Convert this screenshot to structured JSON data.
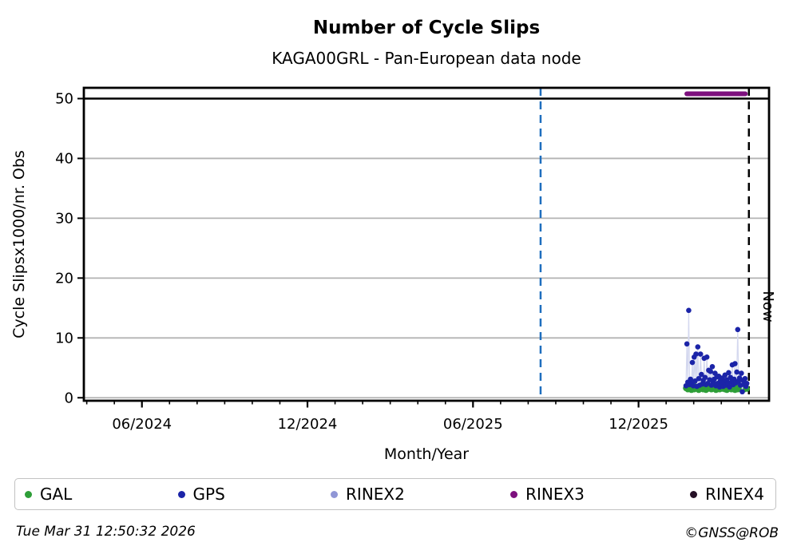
{
  "header": {
    "title": "Number of Cycle Slips",
    "subtitle": "KAGA00GRL - Pan-European data node"
  },
  "footer": {
    "timestamp": "Tue Mar 31 12:50:32 2026",
    "credit": "©GNSS@ROB"
  },
  "legend": {
    "entries": [
      {
        "label": "GAL",
        "color": "#2e9e38"
      },
      {
        "label": "GPS",
        "color": "#1b24a8"
      },
      {
        "label": "RINEX2",
        "color": "#9096d6"
      },
      {
        "label": "RINEX3",
        "color": "#7d107e"
      },
      {
        "label": "RINEX4",
        "color": "#251026"
      }
    ]
  },
  "chart_data": {
    "type": "scatter",
    "title": "Number of Cycle Slips",
    "subtitle": "KAGA00GRL - Pan-European data node",
    "xlabel": "Month/Year",
    "ylabel": "Cycle Slipsx1000/nr. Obs",
    "x_axis": {
      "unit": "months_since_2024-04",
      "range": [
        -0.105,
        24.73
      ],
      "minor_tick_step_months": 1,
      "major_ticks": [
        {
          "m": 2,
          "label": "06/2024"
        },
        {
          "m": 8,
          "label": "12/2024"
        },
        {
          "m": 14,
          "label": "06/2025"
        },
        {
          "m": 20,
          "label": "12/2025"
        }
      ]
    },
    "y_axis": {
      "range": [
        -0.5,
        51.8
      ],
      "ticks": [
        0,
        10,
        20,
        30,
        40,
        50
      ],
      "cap_line_value": 50,
      "cap_line_color": "#000000",
      "grid_color": "#b3b3b3",
      "grid_on": true
    },
    "marker_lines": [
      {
        "name": "event-line",
        "m": 16.45,
        "color": "#1e6ebe",
        "style": "dashed",
        "label": ""
      },
      {
        "name": "now-line",
        "m": 24.0,
        "color": "#000000",
        "style": "dashed",
        "label": "Now"
      }
    ],
    "legend_position": "bottom",
    "series": [
      {
        "name": "GAL",
        "color": "#2e9e38",
        "marker_radius": 3.8,
        "start_m": 21.72,
        "step_m": 0.0329,
        "values": [
          1.6,
          1.8,
          1.4,
          1.9,
          1.5,
          1.7,
          1.3,
          1.8,
          1.6,
          1.4,
          1.9,
          1.7,
          1.5,
          1.8,
          1.3,
          1.6,
          1.9,
          1.5,
          1.7,
          1.4,
          1.8,
          1.6,
          1.3,
          1.7,
          1.9,
          1.5,
          1.6,
          1.8,
          1.4,
          1.7,
          1.5,
          1.9,
          1.6,
          1.3,
          1.8,
          1.5,
          1.7,
          1.4,
          1.6,
          1.9,
          1.5,
          1.7,
          1.8,
          1.4,
          1.6,
          1.3,
          1.7,
          1.5,
          1.9,
          1.6,
          1.4,
          1.8,
          1.7,
          1.5,
          1.3,
          1.6,
          1.8,
          1.4,
          1.7,
          1.5,
          1.6,
          1.9,
          1.5,
          1.7,
          1.4,
          1.6,
          1.8,
          1.5
        ]
      },
      {
        "name": "GPS",
        "color": "#1b24a8",
        "marker_radius": 3.3,
        "line_color": "#d4d8ef",
        "start_m": 21.72,
        "step_m": 0.0329,
        "values": [
          2.0,
          9.0,
          2.6,
          14.6,
          2.2,
          3.1,
          2.4,
          5.9,
          2.0,
          6.8,
          2.8,
          7.3,
          1.9,
          8.5,
          3.2,
          2.1,
          7.3,
          3.9,
          2.3,
          2.9,
          6.6,
          3.4,
          2.2,
          6.8,
          2.4,
          4.6,
          3.0,
          4.4,
          2.1,
          5.2,
          2.7,
          3.1,
          4.1,
          2.0,
          3.5,
          2.4,
          3.6,
          1.8,
          2.9,
          2.2,
          3.3,
          1.9,
          2.6,
          3.8,
          2.1,
          3.0,
          2.4,
          4.2,
          1.8,
          3.4,
          2.6,
          5.5,
          2.2,
          3.1,
          5.7,
          2.5,
          4.3,
          11.4,
          2.8,
          3.3,
          2.1,
          4.1,
          1.0,
          2.9,
          2.2,
          3.2,
          1.9,
          2.4
        ]
      },
      {
        "name": "RINEX2",
        "color": "#9096d6",
        "values": []
      },
      {
        "name": "RINEX3",
        "color": "#7d107e",
        "segment": {
          "m_start": 21.75,
          "m_end": 23.87,
          "value": 50.8
        },
        "note": "values clipped at top of scale"
      },
      {
        "name": "RINEX4",
        "color": "#251026",
        "values": []
      }
    ]
  }
}
